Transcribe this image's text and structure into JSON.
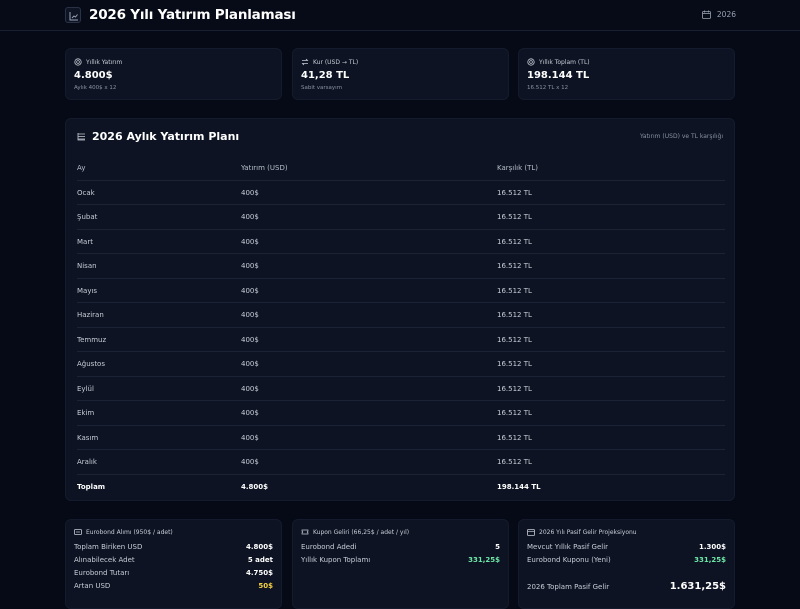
{
  "header": {
    "title": "2026 Yılı Yatırım Planlaması",
    "year": "2026"
  },
  "stats": [
    {
      "icon": "coins-icon",
      "label": "Yıllık Yatırım",
      "value": "4.800$",
      "sub": "Aylık 400$ x 12"
    },
    {
      "icon": "exchange-icon",
      "label": "Kur (USD → TL)",
      "value": "41,28 TL",
      "sub": "Sabit varsayım"
    },
    {
      "icon": "coins-icon",
      "label": "Yıllık Toplam (TL)",
      "value": "198.144 TL",
      "sub": "16.512 TL x 12"
    }
  ],
  "plan": {
    "title": "2026 Aylık Yatırım Planı",
    "note": "Yatırım (USD) ve TL karşılığı",
    "columns": [
      "Ay",
      "Yatırım (USD)",
      "Karşılık (TL)"
    ],
    "rows": [
      [
        "Ocak",
        "400$",
        "16.512 TL"
      ],
      [
        "Şubat",
        "400$",
        "16.512 TL"
      ],
      [
        "Mart",
        "400$",
        "16.512 TL"
      ],
      [
        "Nisan",
        "400$",
        "16.512 TL"
      ],
      [
        "Mayıs",
        "400$",
        "16.512 TL"
      ],
      [
        "Haziran",
        "400$",
        "16.512 TL"
      ],
      [
        "Temmuz",
        "400$",
        "16.512 TL"
      ],
      [
        "Ağustos",
        "400$",
        "16.512 TL"
      ],
      [
        "Eylül",
        "400$",
        "16.512 TL"
      ],
      [
        "Ekim",
        "400$",
        "16.512 TL"
      ],
      [
        "Kasım",
        "400$",
        "16.512 TL"
      ],
      [
        "Aralık",
        "400$",
        "16.512 TL"
      ]
    ],
    "total": [
      "Toplam",
      "4.800$",
      "198.144 TL"
    ]
  },
  "eurobond": {
    "title": "Eurobond Alımı (950$ / adet)",
    "rows": [
      {
        "label": "Toplam Biriken USD",
        "value": "4.800$"
      },
      {
        "label": "Alınabilecek Adet",
        "value": "5 adet"
      },
      {
        "label": "Eurobond Tutarı",
        "value": "4.750$"
      },
      {
        "label": "Artan USD",
        "value": "50$"
      }
    ]
  },
  "coupon": {
    "title": "Kupon Geliri (66,25$ / adet / yıl)",
    "rows": [
      {
        "label": "Eurobond Adedi",
        "value": "5"
      },
      {
        "label": "Yıllık Kupon Toplamı",
        "value": "331,25$"
      }
    ]
  },
  "passive": {
    "title": "2026 Yılı Pasif Gelir Projeksiyonu",
    "rows": [
      {
        "label": "Mevcut Yıllık Pasif Gelir",
        "value": "1.300$"
      },
      {
        "label": "Eurobond Kuponu (Yeni)",
        "value": "331,25$"
      }
    ],
    "total": {
      "label": "2026 Toplam Pasif Gelir",
      "value": "1.631,25$"
    }
  },
  "colors": {
    "background": "#060a16",
    "card": "#0d1322",
    "green": "#6ee7a8",
    "yellow": "#f5d142"
  }
}
